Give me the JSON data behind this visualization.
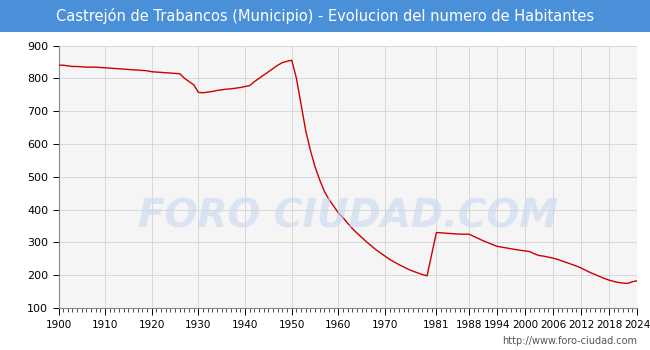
{
  "title": "Castrejón de Trabancos (Municipio) - Evolucion del numero de Habitantes",
  "title_bg_color": "#4a90d9",
  "title_text_color": "#ffffff",
  "line_color": "#cc0000",
  "bg_color": "#ffffff",
  "grid_color": "#cccccc",
  "plot_bg_color": "#f5f5f5",
  "watermark_text": "FORO CIUDAD.COM",
  "watermark_color": "#c8d8f0",
  "url_text": "http://www.foro-ciudad.com",
  "ylim": [
    100,
    900
  ],
  "yticks": [
    100,
    200,
    300,
    400,
    500,
    600,
    700,
    800,
    900
  ],
  "xtick_labels": [
    "1900",
    "1910",
    "1920",
    "1930",
    "1940",
    "1950",
    "1960",
    "1970",
    "1981",
    "1988",
    "1994",
    "2000",
    "2006",
    "2012",
    "2018",
    "2024"
  ],
  "years": [
    1900,
    1901,
    1902,
    1903,
    1904,
    1905,
    1906,
    1907,
    1908,
    1909,
    1910,
    1911,
    1912,
    1913,
    1914,
    1915,
    1916,
    1917,
    1918,
    1919,
    1920,
    1921,
    1922,
    1923,
    1924,
    1925,
    1926,
    1927,
    1928,
    1929,
    1930,
    1931,
    1932,
    1933,
    1934,
    1935,
    1936,
    1937,
    1938,
    1939,
    1940,
    1941,
    1942,
    1943,
    1944,
    1945,
    1946,
    1947,
    1948,
    1949,
    1950,
    1951,
    1952,
    1953,
    1954,
    1955,
    1956,
    1957,
    1958,
    1959,
    1960,
    1961,
    1962,
    1963,
    1964,
    1965,
    1966,
    1967,
    1968,
    1969,
    1970,
    1971,
    1972,
    1973,
    1974,
    1975,
    1976,
    1977,
    1978,
    1979,
    1981,
    1983,
    1986,
    1988,
    1991,
    1994,
    1996,
    1998,
    1999,
    2000,
    2001,
    2002,
    2003,
    2004,
    2005,
    2006,
    2007,
    2008,
    2009,
    2010,
    2011,
    2012,
    2013,
    2014,
    2015,
    2016,
    2017,
    2018,
    2019,
    2020,
    2021,
    2022,
    2023,
    2024
  ],
  "population": [
    840,
    840,
    838,
    836,
    836,
    835,
    834,
    834,
    834,
    833,
    832,
    831,
    830,
    829,
    828,
    827,
    826,
    825,
    824,
    823,
    820,
    819,
    818,
    817,
    816,
    815,
    814,
    800,
    790,
    780,
    757,
    756,
    758,
    760,
    763,
    765,
    767,
    768,
    770,
    772,
    775,
    778,
    790,
    800,
    810,
    820,
    830,
    840,
    848,
    852,
    855,
    800,
    720,
    640,
    580,
    530,
    490,
    455,
    430,
    410,
    390,
    375,
    358,
    342,
    328,
    315,
    302,
    290,
    278,
    268,
    258,
    248,
    240,
    232,
    225,
    218,
    212,
    207,
    202,
    198,
    330,
    328,
    325,
    325,
    305,
    288,
    283,
    278,
    276,
    274,
    272,
    265,
    260,
    258,
    255,
    252,
    248,
    243,
    238,
    233,
    228,
    222,
    215,
    208,
    202,
    196,
    190,
    185,
    181,
    178,
    176,
    175,
    180,
    183
  ]
}
